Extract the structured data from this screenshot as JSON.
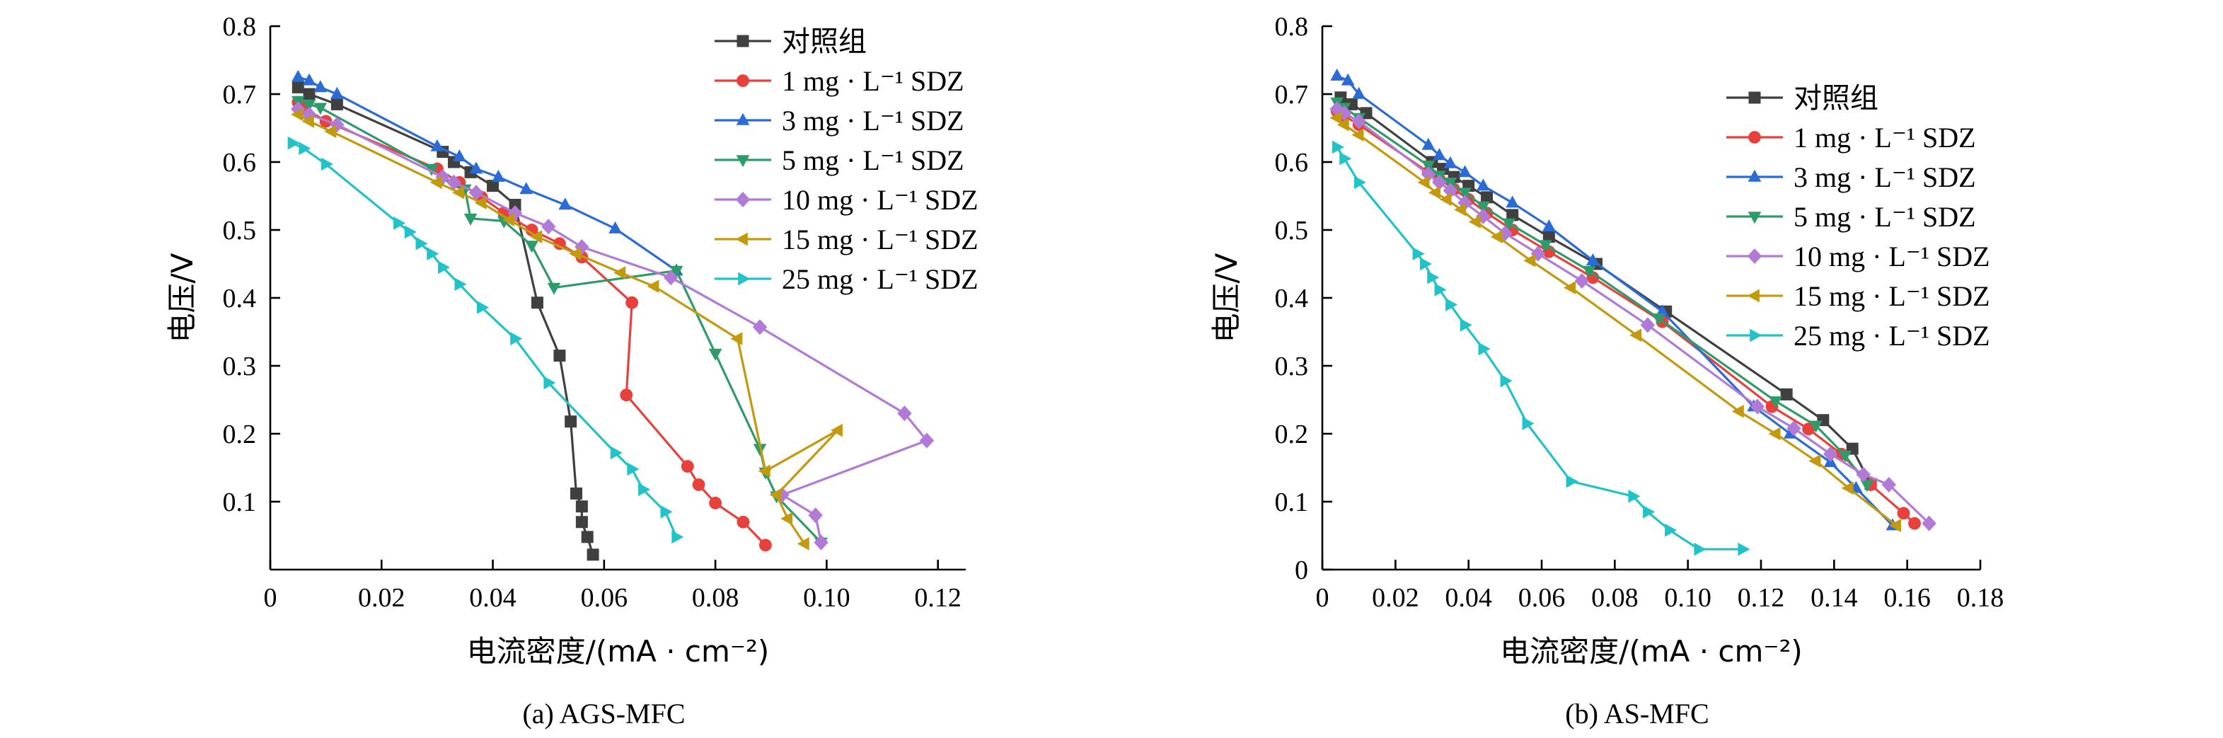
{
  "chart_data": [
    {
      "type": "line",
      "caption": "(a) AGS-MFC",
      "xlabel": "电流密度/(mA · cm⁻²)",
      "ylabel": "电压/V",
      "xlim": [
        0,
        0.125
      ],
      "ylim": [
        0,
        0.8
      ],
      "xticks": [
        0,
        0.02,
        0.04,
        0.06,
        0.08,
        0.1,
        0.12
      ],
      "xtick_labels": [
        "0",
        "0.02",
        "0.04",
        "0.06",
        "0.08",
        "0.10",
        "0.12"
      ],
      "yticks": [
        0.1,
        0.2,
        0.3,
        0.4,
        0.5,
        0.6,
        0.7,
        0.8
      ],
      "ytick_labels": [
        "0.1",
        "0.2",
        "0.3",
        "0.4",
        "0.5",
        "0.6",
        "0.7",
        "0.8"
      ],
      "legend_position": "top-right",
      "series": [
        {
          "name": "对照组",
          "color": "#404040",
          "marker": "square",
          "x": [
            0.005,
            0.007,
            0.012,
            0.031,
            0.033,
            0.036,
            0.04,
            0.044,
            0.048,
            0.052,
            0.054,
            0.055,
            0.056,
            0.056,
            0.057,
            0.058
          ],
          "y": [
            0.71,
            0.7,
            0.685,
            0.615,
            0.6,
            0.585,
            0.565,
            0.537,
            0.393,
            0.315,
            0.218,
            0.112,
            0.093,
            0.07,
            0.048,
            0.022
          ]
        },
        {
          "name": "1 mg · L⁻¹ SDZ",
          "color": "#e8413c",
          "marker": "circle",
          "x": [
            0.005,
            0.006,
            0.01,
            0.03,
            0.034,
            0.038,
            0.042,
            0.047,
            0.052,
            0.056,
            0.065,
            0.064,
            0.075,
            0.077,
            0.08,
            0.085,
            0.089
          ],
          "y": [
            0.688,
            0.68,
            0.66,
            0.59,
            0.57,
            0.548,
            0.525,
            0.5,
            0.48,
            0.46,
            0.393,
            0.257,
            0.152,
            0.125,
            0.098,
            0.07,
            0.036
          ]
        },
        {
          "name": "3 mg · L⁻¹ SDZ",
          "color": "#2a6bd6",
          "marker": "triangle-up",
          "x": [
            0.005,
            0.007,
            0.009,
            0.012,
            0.03,
            0.034,
            0.037,
            0.041,
            0.046,
            0.053,
            0.062,
            0.073
          ],
          "y": [
            0.725,
            0.72,
            0.71,
            0.7,
            0.623,
            0.608,
            0.59,
            0.578,
            0.56,
            0.537,
            0.502,
            0.44
          ]
        },
        {
          "name": "5 mg · L⁻¹ SDZ",
          "color": "#2e9b6a",
          "marker": "triangle-down",
          "x": [
            0.005,
            0.007,
            0.009,
            0.029,
            0.031,
            0.035,
            0.036,
            0.042,
            0.047,
            0.051,
            0.073,
            0.08,
            0.088,
            0.089,
            0.091,
            0.099
          ],
          "y": [
            0.69,
            0.685,
            0.68,
            0.59,
            0.575,
            0.56,
            0.517,
            0.513,
            0.477,
            0.415,
            0.44,
            0.318,
            0.178,
            0.143,
            0.108,
            0.04
          ]
        },
        {
          "name": "10 mg · L⁻¹ SDZ",
          "color": "#b07ad6",
          "marker": "diamond",
          "x": [
            0.005,
            0.007,
            0.012,
            0.031,
            0.033,
            0.037,
            0.044,
            0.05,
            0.056,
            0.072,
            0.088,
            0.114,
            0.118,
            0.092,
            0.098,
            0.099
          ],
          "y": [
            0.678,
            0.67,
            0.655,
            0.578,
            0.57,
            0.555,
            0.525,
            0.505,
            0.475,
            0.43,
            0.357,
            0.23,
            0.19,
            0.11,
            0.08,
            0.04
          ]
        },
        {
          "name": "15 mg · L⁻¹ SDZ",
          "color": "#c39a0d",
          "marker": "triangle-left",
          "x": [
            0.005,
            0.007,
            0.011,
            0.03,
            0.034,
            0.038,
            0.043,
            0.048,
            0.055,
            0.063,
            0.069,
            0.084,
            0.089,
            0.102,
            0.091,
            0.093,
            0.096
          ],
          "y": [
            0.67,
            0.66,
            0.645,
            0.57,
            0.555,
            0.54,
            0.515,
            0.49,
            0.465,
            0.437,
            0.417,
            0.34,
            0.145,
            0.205,
            0.11,
            0.075,
            0.038
          ]
        },
        {
          "name": "25 mg · L⁻¹ SDZ",
          "color": "#22c3c8",
          "marker": "triangle-right",
          "x": [
            0.004,
            0.006,
            0.01,
            0.023,
            0.025,
            0.027,
            0.029,
            0.031,
            0.034,
            0.038,
            0.044,
            0.05,
            0.062,
            0.065,
            0.067,
            0.071,
            0.073
          ],
          "y": [
            0.628,
            0.62,
            0.597,
            0.51,
            0.497,
            0.48,
            0.465,
            0.445,
            0.42,
            0.386,
            0.34,
            0.275,
            0.172,
            0.148,
            0.118,
            0.085,
            0.048
          ]
        }
      ]
    },
    {
      "type": "line",
      "caption": "(b) AS-MFC",
      "xlabel": "电流密度/(mA · cm⁻²)",
      "ylabel": "电压/V",
      "xlim": [
        0,
        0.18
      ],
      "ylim": [
        0,
        0.8
      ],
      "xticks": [
        0,
        0.02,
        0.04,
        0.06,
        0.08,
        0.1,
        0.12,
        0.14,
        0.16,
        0.18
      ],
      "xtick_labels": [
        "0",
        "0.02",
        "0.04",
        "0.06",
        "0.08",
        "0.10",
        "0.12",
        "0.14",
        "0.16",
        "0.18"
      ],
      "yticks": [
        0,
        0.1,
        0.2,
        0.3,
        0.4,
        0.5,
        0.6,
        0.7,
        0.8
      ],
      "ytick_labels": [
        "0",
        "0.1",
        "0.2",
        "0.3",
        "0.4",
        "0.5",
        "0.6",
        "0.7",
        "0.8"
      ],
      "legend_position": "top-right",
      "series": [
        {
          "name": "对照组",
          "color": "#404040",
          "marker": "square",
          "x": [
            0.005,
            0.008,
            0.012,
            0.03,
            0.033,
            0.036,
            0.04,
            0.045,
            0.052,
            0.062,
            0.075,
            0.094,
            0.127,
            0.137,
            0.145,
            0.15
          ],
          "y": [
            0.695,
            0.685,
            0.672,
            0.6,
            0.59,
            0.578,
            0.565,
            0.548,
            0.522,
            0.49,
            0.45,
            0.38,
            0.258,
            0.22,
            0.178,
            0.126
          ]
        },
        {
          "name": "1 mg · L⁻¹ SDZ",
          "color": "#e8413c",
          "marker": "circle",
          "x": [
            0.004,
            0.006,
            0.01,
            0.029,
            0.032,
            0.036,
            0.04,
            0.045,
            0.052,
            0.062,
            0.074,
            0.093,
            0.123,
            0.133,
            0.142,
            0.15,
            0.159,
            0.162
          ],
          "y": [
            0.675,
            0.668,
            0.655,
            0.585,
            0.575,
            0.56,
            0.545,
            0.525,
            0.5,
            0.468,
            0.43,
            0.365,
            0.24,
            0.207,
            0.17,
            0.125,
            0.083,
            0.068
          ]
        },
        {
          "name": "3 mg · L⁻¹ SDZ",
          "color": "#2a6bd6",
          "marker": "triangle-up",
          "x": [
            0.004,
            0.007,
            0.01,
            0.029,
            0.032,
            0.035,
            0.039,
            0.044,
            0.052,
            0.062,
            0.074,
            0.093,
            0.118,
            0.128,
            0.139,
            0.146,
            0.156
          ],
          "y": [
            0.727,
            0.72,
            0.7,
            0.625,
            0.61,
            0.598,
            0.585,
            0.565,
            0.54,
            0.505,
            0.455,
            0.38,
            0.24,
            0.2,
            0.158,
            0.12,
            0.065
          ]
        },
        {
          "name": "5 mg · L⁻¹ SDZ",
          "color": "#2e9b6a",
          "marker": "triangle-down",
          "x": [
            0.004,
            0.006,
            0.01,
            0.029,
            0.032,
            0.035,
            0.039,
            0.044,
            0.051,
            0.061,
            0.073,
            0.092,
            0.124,
            0.135,
            0.143,
            0.149
          ],
          "y": [
            0.688,
            0.68,
            0.665,
            0.595,
            0.58,
            0.57,
            0.555,
            0.535,
            0.51,
            0.478,
            0.44,
            0.37,
            0.248,
            0.212,
            0.168,
            0.125
          ]
        },
        {
          "name": "10 mg · L⁻¹ SDZ",
          "color": "#b07ad6",
          "marker": "diamond",
          "x": [
            0.004,
            0.006,
            0.01,
            0.029,
            0.032,
            0.035,
            0.039,
            0.044,
            0.05,
            0.059,
            0.071,
            0.089,
            0.119,
            0.129,
            0.139,
            0.148,
            0.155,
            0.166
          ],
          "y": [
            0.678,
            0.672,
            0.66,
            0.582,
            0.57,
            0.558,
            0.54,
            0.52,
            0.495,
            0.465,
            0.425,
            0.36,
            0.24,
            0.208,
            0.17,
            0.14,
            0.125,
            0.068
          ]
        },
        {
          "name": "15 mg · L⁻¹ SDZ",
          "color": "#c39a0d",
          "marker": "triangle-left",
          "x": [
            0.004,
            0.006,
            0.01,
            0.028,
            0.031,
            0.034,
            0.038,
            0.042,
            0.048,
            0.057,
            0.068,
            0.086,
            0.114,
            0.124,
            0.135,
            0.144,
            0.157
          ],
          "y": [
            0.665,
            0.655,
            0.64,
            0.57,
            0.555,
            0.545,
            0.53,
            0.512,
            0.49,
            0.455,
            0.415,
            0.345,
            0.233,
            0.2,
            0.16,
            0.12,
            0.065
          ]
        },
        {
          "name": "25 mg · L⁻¹ SDZ",
          "color": "#22c3c8",
          "marker": "triangle-right",
          "x": [
            0.004,
            0.006,
            0.01,
            0.026,
            0.028,
            0.03,
            0.032,
            0.035,
            0.039,
            0.044,
            0.05,
            0.056,
            0.068,
            0.085,
            0.089,
            0.095,
            0.103,
            0.115
          ],
          "y": [
            0.622,
            0.605,
            0.57,
            0.465,
            0.45,
            0.43,
            0.412,
            0.39,
            0.36,
            0.325,
            0.278,
            0.215,
            0.13,
            0.108,
            0.085,
            0.058,
            0.03,
            0.03
          ]
        }
      ]
    }
  ]
}
